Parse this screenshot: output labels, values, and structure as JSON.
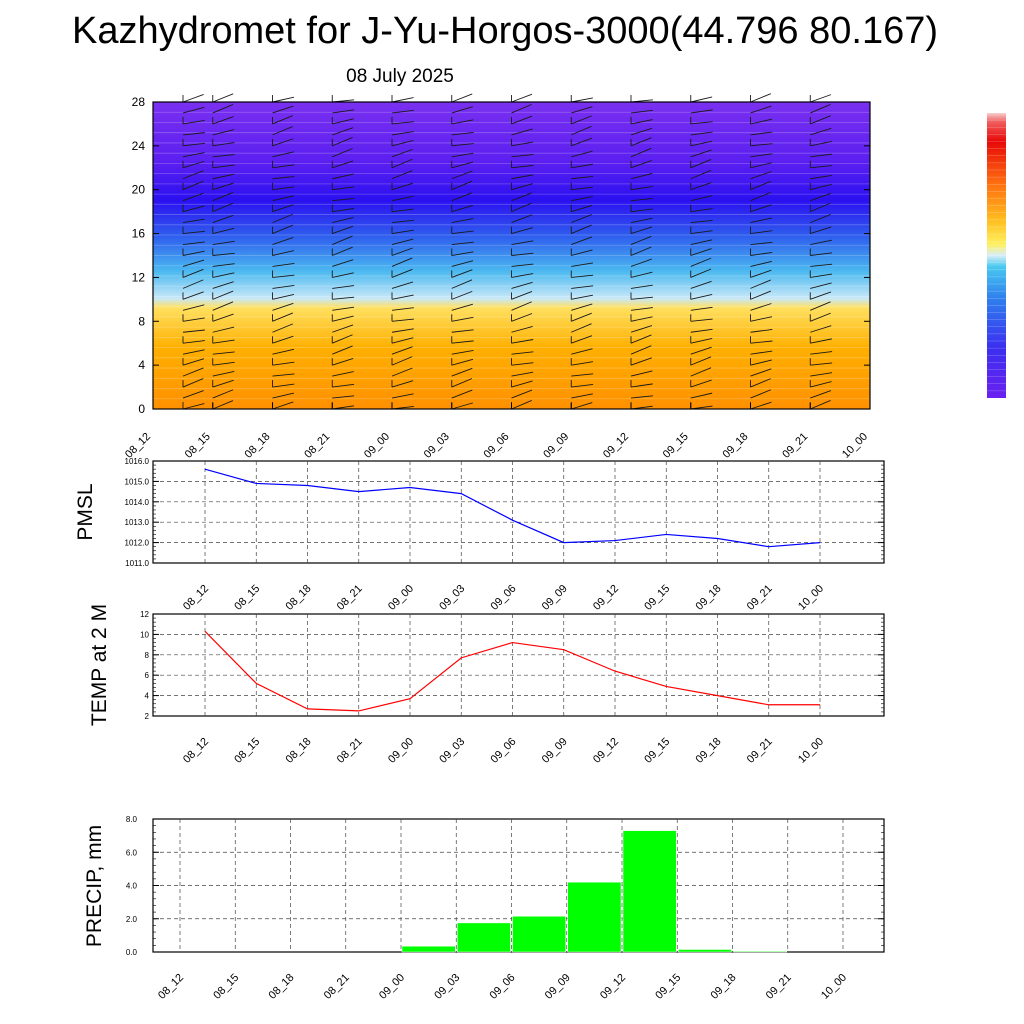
{
  "title": "Kazhydromet for J-Yu-Horgos-3000(44.796 80.167)",
  "subtitle": "08 July 2025",
  "time_labels": [
    "08_12",
    "08_15",
    "08_18",
    "08_21",
    "09_00",
    "09_03",
    "09_06",
    "09_09",
    "09_12",
    "09_15",
    "09_18",
    "09_21",
    "10_00"
  ],
  "chart_data": [
    {
      "type": "heatmap",
      "title": "",
      "ylabel": "",
      "ylim": [
        0,
        28
      ],
      "yticks": [
        0,
        4,
        8,
        12,
        16,
        20,
        24,
        28
      ],
      "colors": {
        "low": "#ff9000",
        "mid_low": "#ffe060",
        "mid": "#4ab8f0",
        "high": "#2b10f0",
        "top": "#7a30f0"
      },
      "wind_barbs": true,
      "colorbar": true
    },
    {
      "type": "line",
      "ylabel": "PMSL",
      "ylim": [
        1011.0,
        1016.0
      ],
      "yticks": [
        "1011.0",
        "1012.0",
        "1013.0",
        "1014.0",
        "1015.0",
        "1016.0"
      ],
      "color": "#0000ff",
      "values": [
        1015.6,
        1014.9,
        1014.8,
        1014.5,
        1014.7,
        1014.4,
        1013.1,
        1012.0,
        1012.1,
        1012.4,
        1012.2,
        1011.8,
        1012.0
      ]
    },
    {
      "type": "line",
      "ylabel": "TEMP at 2 M",
      "ylim": [
        2,
        12
      ],
      "yticks": [
        "2",
        "4",
        "6",
        "8",
        "10",
        "12"
      ],
      "color": "#ff0000",
      "values": [
        10.3,
        5.2,
        2.7,
        2.5,
        3.7,
        7.7,
        9.2,
        8.5,
        6.4,
        4.9,
        4.0,
        3.1,
        3.1
      ]
    },
    {
      "type": "bar",
      "ylabel": "PRECIP, mm",
      "ylim": [
        0,
        8
      ],
      "yticks": [
        "0.0",
        "2.0",
        "4.0",
        "6.0",
        "8.0"
      ],
      "color": "#00ff00",
      "values": [
        0,
        0,
        0,
        0,
        0,
        0.35,
        1.75,
        2.15,
        4.2,
        7.3,
        0.15,
        0.05,
        0
      ]
    }
  ]
}
